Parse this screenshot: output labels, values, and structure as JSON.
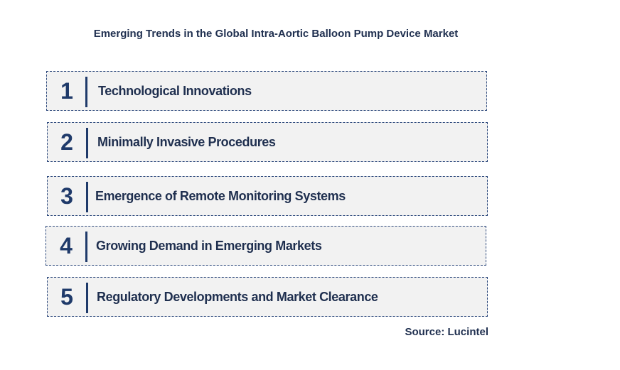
{
  "title": "Emerging Trends in the Global Intra-Aortic Balloon Pump Device Market",
  "trends": [
    {
      "number": "1",
      "label": "Technological Innovations"
    },
    {
      "number": "2",
      "label": "Minimally Invasive Procedures"
    },
    {
      "number": "3",
      "label": "Emergence of Remote Monitoring Systems"
    },
    {
      "number": "4",
      "label": "Growing Demand in Emerging Markets"
    },
    {
      "number": "5",
      "label": "Regulatory Developments and Market Clearance"
    }
  ],
  "source": "Source: Lucintel",
  "colors": {
    "navy": "#1f3a6a",
    "box_fill": "#f2f2f2",
    "text": "#1f2f4f"
  }
}
